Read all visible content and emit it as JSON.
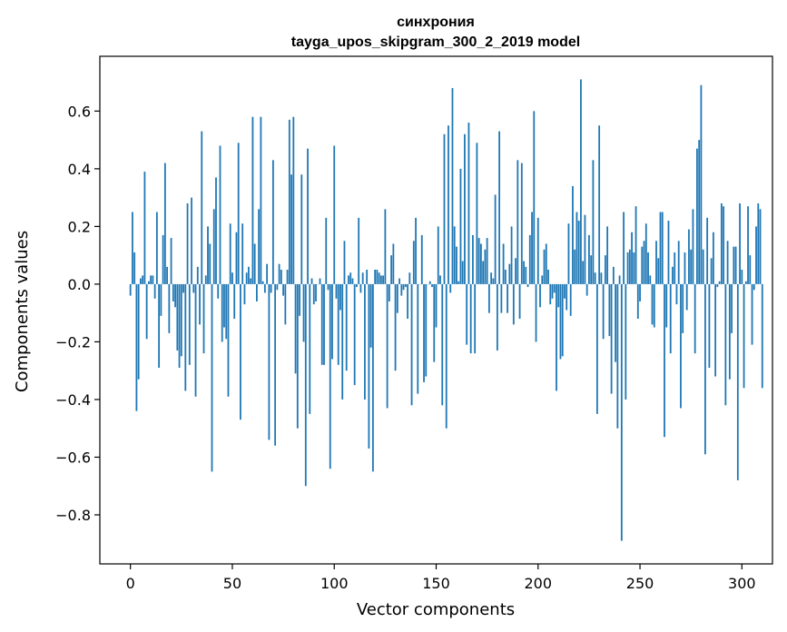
{
  "chart_data": {
    "type": "bar",
    "title": "синхрония",
    "subtitle": "tayga_upos_skipgram_300_2_2019 model",
    "xlabel": "Vector components",
    "ylabel": "Components values",
    "xlim": [
      -15,
      315
    ],
    "ylim": [
      -0.97,
      0.79
    ],
    "xticks": [
      0,
      50,
      100,
      150,
      200,
      250,
      300
    ],
    "yticks": [
      -0.8,
      -0.6,
      -0.4,
      -0.2,
      0.0,
      0.2,
      0.4,
      0.6
    ],
    "xtick_labels": [
      "0",
      "50",
      "100",
      "150",
      "200",
      "250",
      "300"
    ],
    "ytick_labels": [
      "−0.8",
      "−0.6",
      "−0.4",
      "−0.2",
      "0.0",
      "0.2",
      "0.4",
      "0.6"
    ],
    "bar_color": "#1f77b4",
    "grid": false,
    "values": [
      -0.04,
      0.25,
      0.11,
      -0.44,
      -0.33,
      0.02,
      0.03,
      0.39,
      -0.19,
      0.01,
      0.03,
      0.03,
      -0.05,
      0.25,
      -0.29,
      -0.11,
      0.17,
      0.42,
      0.06,
      -0.17,
      0.16,
      -0.06,
      -0.08,
      -0.23,
      -0.29,
      -0.25,
      -0.03,
      -0.37,
      0.28,
      -0.28,
      0.3,
      -0.03,
      -0.39,
      0.06,
      -0.14,
      0.53,
      -0.24,
      0.03,
      0.2,
      0.14,
      -0.65,
      0.26,
      0.37,
      -0.05,
      0.48,
      -0.2,
      -0.15,
      -0.19,
      -0.39,
      0.21,
      0.04,
      -0.12,
      0.18,
      0.49,
      -0.47,
      0.21,
      -0.07,
      0.04,
      0.06,
      0.02,
      0.58,
      0.14,
      -0.06,
      0.26,
      0.58,
      0.01,
      -0.03,
      0.07,
      -0.54,
      -0.03,
      0.43,
      -0.56,
      -0.02,
      0.07,
      0.05,
      -0.04,
      -0.14,
      0.05,
      0.57,
      0.38,
      0.58,
      -0.31,
      -0.5,
      -0.11,
      0.38,
      -0.2,
      -0.7,
      0.47,
      -0.45,
      0.02,
      -0.07,
      -0.06,
      0.0,
      0.02,
      -0.28,
      -0.28,
      0.23,
      -0.02,
      -0.64,
      -0.26,
      0.48,
      -0.05,
      -0.28,
      -0.09,
      -0.4,
      0.15,
      -0.3,
      0.03,
      0.04,
      0.02,
      -0.35,
      -0.01,
      0.23,
      -0.03,
      0.04,
      -0.4,
      0.05,
      -0.57,
      -0.22,
      -0.65,
      0.05,
      0.05,
      0.04,
      0.03,
      0.03,
      0.26,
      -0.43,
      -0.06,
      0.1,
      0.14,
      -0.3,
      -0.1,
      0.02,
      -0.04,
      -0.02,
      -0.01,
      -0.12,
      0.04,
      -0.42,
      0.15,
      0.23,
      -0.38,
      0.0,
      0.17,
      -0.34,
      -0.32,
      0.0,
      0.01,
      -0.01,
      -0.27,
      -0.15,
      0.2,
      0.03,
      -0.42,
      0.52,
      -0.5,
      0.55,
      -0.03,
      0.68,
      0.2,
      0.13,
      0.01,
      0.4,
      0.08,
      0.52,
      -0.21,
      0.56,
      -0.24,
      0.17,
      -0.24,
      0.49,
      0.16,
      0.14,
      0.08,
      0.12,
      0.16,
      -0.1,
      0.04,
      0.02,
      0.31,
      -0.23,
      0.53,
      -0.1,
      0.14,
      0.05,
      -0.1,
      0.07,
      0.2,
      -0.14,
      0.09,
      0.43,
      -0.12,
      0.42,
      0.08,
      0.06,
      -0.01,
      0.17,
      0.25,
      0.6,
      -0.2,
      0.23,
      -0.08,
      0.03,
      0.12,
      0.14,
      0.05,
      -0.07,
      -0.05,
      -0.03,
      -0.37,
      -0.08,
      -0.26,
      -0.25,
      -0.05,
      -0.09,
      0.21,
      -0.11,
      0.34,
      0.12,
      0.25,
      0.22,
      0.71,
      0.08,
      0.24,
      -0.04,
      0.17,
      0.1,
      0.43,
      0.04,
      -0.45,
      0.55,
      0.04,
      -0.19,
      0.1,
      0.2,
      -0.18,
      -0.38,
      0.06,
      -0.27,
      -0.5,
      0.03,
      -0.89,
      0.25,
      -0.4,
      0.11,
      0.12,
      0.18,
      0.11,
      0.27,
      -0.12,
      -0.06,
      0.13,
      0.15,
      0.21,
      0.11,
      0.03,
      -0.14,
      -0.15,
      0.15,
      0.09,
      0.25,
      0.25,
      -0.53,
      -0.15,
      0.22,
      -0.24,
      0.06,
      0.11,
      -0.07,
      0.15,
      -0.43,
      -0.17,
      0.11,
      -0.09,
      0.19,
      0.12,
      0.26,
      -0.24,
      0.47,
      0.5,
      0.69,
      0.12,
      -0.59,
      0.23,
      -0.29,
      0.09,
      0.18,
      -0.32,
      -0.01,
      0.01,
      0.28,
      0.27,
      -0.42,
      0.15,
      -0.33,
      -0.17,
      0.13,
      0.13,
      -0.68,
      0.28,
      0.05,
      -0.36,
      0.01,
      0.27,
      0.1,
      -0.21,
      -0.02,
      0.2,
      0.28,
      0.26,
      -0.36
    ]
  }
}
